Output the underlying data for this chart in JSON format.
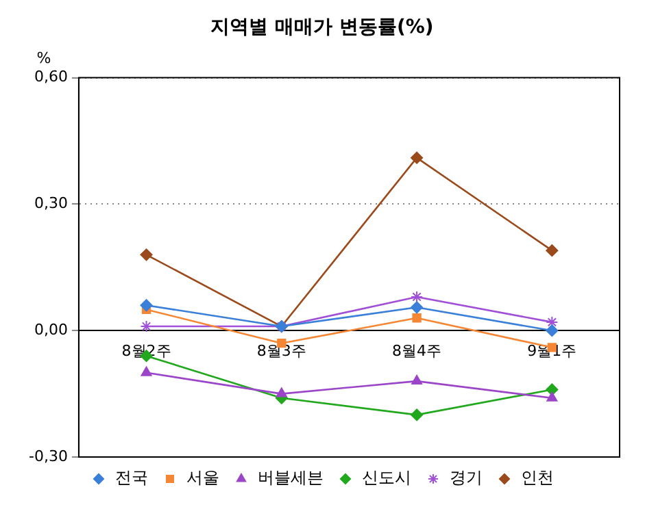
{
  "chart_data": {
    "type": "line",
    "title": "지역별 매매가 변동률(%)",
    "ylabel": "%",
    "categories": [
      "8월2주",
      "8월3주",
      "8월4주",
      "9월1주"
    ],
    "series": [
      {
        "name": "전국",
        "color": "#3a7fd8",
        "marker": "diamond",
        "values": [
          0.06,
          0.01,
          0.055,
          0.0
        ]
      },
      {
        "name": "서울",
        "color": "#f58634",
        "marker": "square",
        "values": [
          0.05,
          -0.03,
          0.03,
          -0.04
        ]
      },
      {
        "name": "버블세븐",
        "color": "#9b45c8",
        "marker": "triangle",
        "values": [
          -0.1,
          -0.15,
          -0.12,
          -0.16
        ]
      },
      {
        "name": "신도시",
        "color": "#22a81e",
        "marker": "diamond",
        "values": [
          -0.06,
          -0.16,
          -0.2,
          -0.14
        ]
      },
      {
        "name": "경기",
        "color": "#a04fd8",
        "marker": "cross",
        "values": [
          0.01,
          0.01,
          0.08,
          0.02
        ]
      },
      {
        "name": "인천",
        "color": "#9b4a1c",
        "marker": "diamond",
        "values": [
          0.18,
          0.01,
          0.41,
          0.19
        ]
      }
    ],
    "ylim": [
      -0.3,
      0.6
    ],
    "yticks": [
      {
        "value": -0.3,
        "label": "-0,30"
      },
      {
        "value": 0,
        "label": "0,00"
      },
      {
        "value": 0.3,
        "label": "0,30"
      },
      {
        "value": 0.6,
        "label": "0,60"
      }
    ],
    "grid": "y",
    "legend": "bottom",
    "line_style": "solid"
  }
}
